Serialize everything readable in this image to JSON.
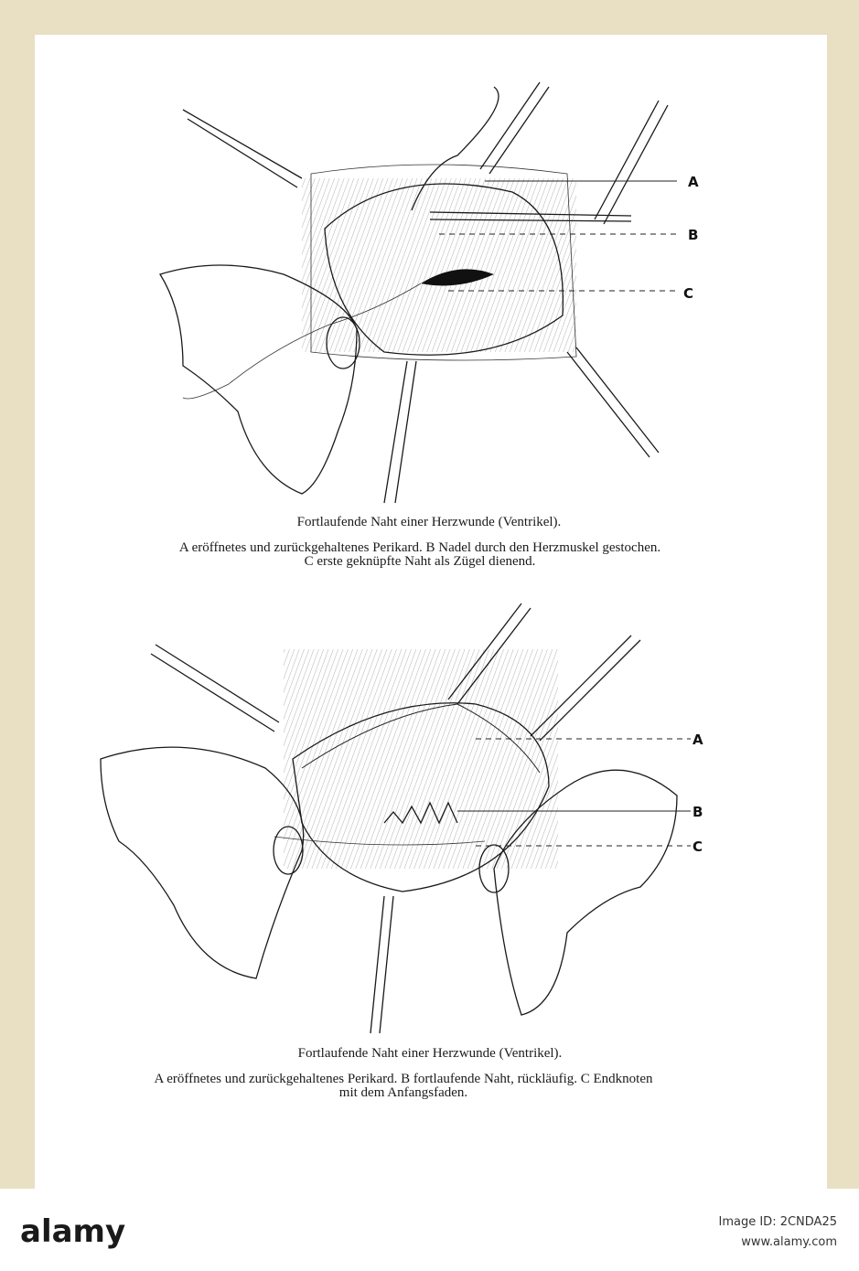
{
  "figures": [
    {
      "labels": [
        "A",
        "B",
        "C"
      ],
      "caption": {
        "title": "Fortlaufende Naht einer Herzwunde (Ventrikel).",
        "lines": [
          "A eröffnetes und zurückgehaltenes Perikard.  B Nadel durch den Herzmuskel gestochen.",
          "C erste geknüpfte Naht als Zügel dienend."
        ]
      }
    },
    {
      "labels": [
        "A",
        "B",
        "C"
      ],
      "caption": {
        "title": "Fortlaufende Naht einer Herzwunde (Ventrikel).",
        "lines": [
          "A eröffnetes und zurückgehaltenes Perikard.  B fortlaufende Naht, rückläufig.  C Endknoten",
          "mit dem Anfangsfaden."
        ]
      }
    }
  ],
  "watermark": {
    "logo": "alamy",
    "image_id": "Image ID: 2CNDA25",
    "url": "www.alamy.com"
  }
}
